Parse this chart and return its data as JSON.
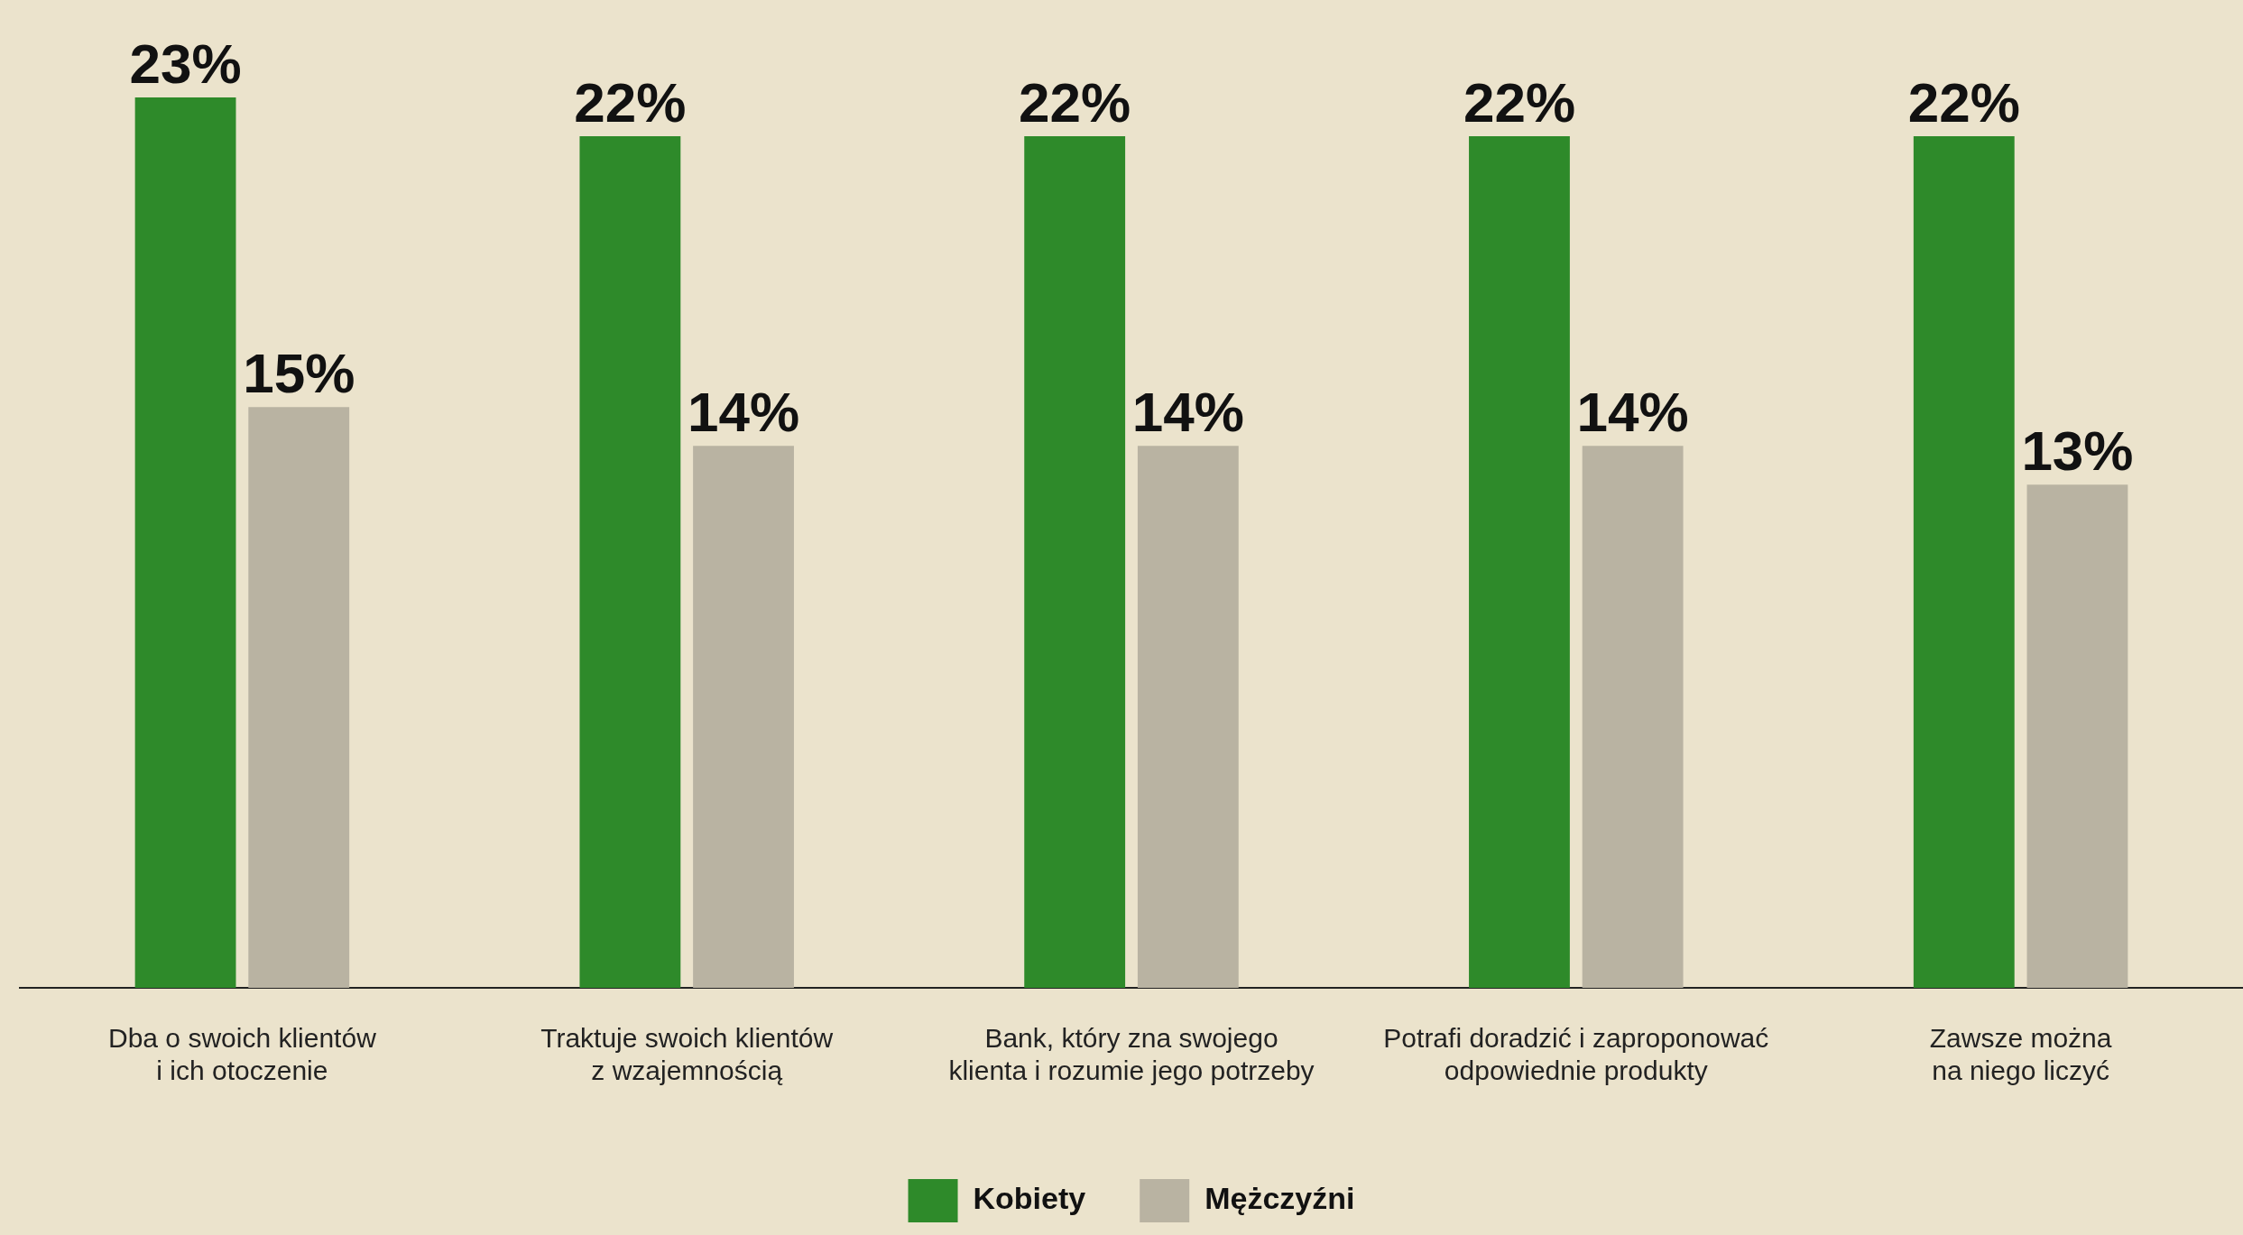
{
  "chart_data": {
    "type": "bar",
    "categories": [
      "Dba o swoich klientów i ich otoczenie",
      "Traktuje swoich klientów z wzajemnością",
      "Bank, który zna swojego klienta i rozumie jego potrzeby",
      "Potrafi doradzić i zaproponować odpowiednie produkty",
      "Zawsze można na niego liczyć"
    ],
    "series": [
      {
        "name": "Kobiety",
        "color": "#2e8a2a",
        "values": [
          23,
          22,
          22,
          22,
          22
        ],
        "value_labels": [
          "23%",
          "22%",
          "22%",
          "22%",
          "22%"
        ]
      },
      {
        "name": "Mężczyźni",
        "color": "#b9b3a2",
        "values": [
          15,
          14,
          14,
          14,
          13
        ],
        "value_labels": [
          "15%",
          "14%",
          "14%",
          "14%",
          "13%"
        ]
      }
    ],
    "legend": "bottom",
    "grid": false
  }
}
